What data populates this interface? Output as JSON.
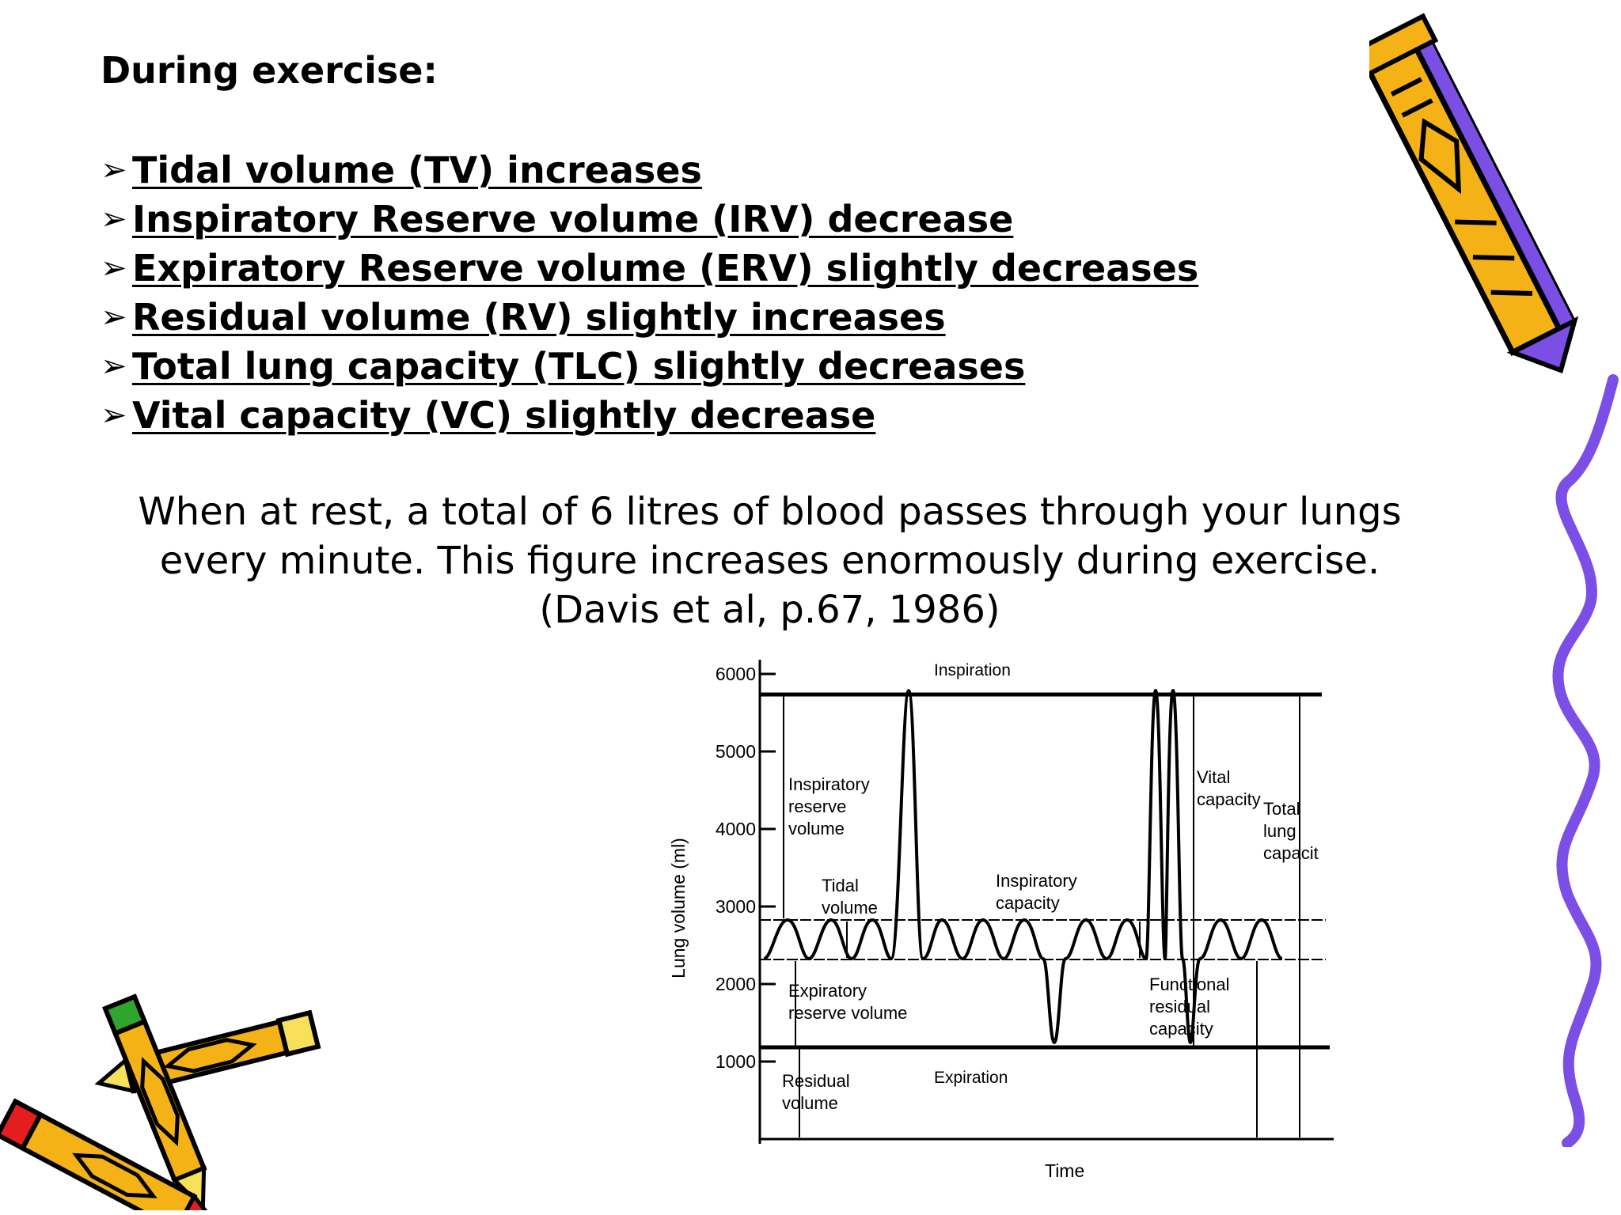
{
  "slide": {
    "heading": "During exercise:",
    "bullets": [
      {
        "arrow": "➢",
        "text": "Tidal volume (TV) increases"
      },
      {
        "arrow": "➢",
        "text": "Inspiratory Reserve volume (IRV) decrease"
      },
      {
        "arrow": "➢",
        "text": "Expiratory Reserve volume (ERV) slightly decreases"
      },
      {
        "arrow": "➢",
        "text": "Residual volume (RV) slightly increases"
      },
      {
        "arrow": "➢",
        "text": "Total lung capacity (TLC) slightly decreases"
      },
      {
        "arrow": "➢",
        "text": "Vital capacity (VC) slightly decrease"
      }
    ],
    "quote": {
      "line1": "When at rest, a total of 6 litres of blood passes through your lungs",
      "line2": "every minute.  This figure increases enormously during exercise.",
      "line3": "(Davis et al, p.67, 1986)"
    }
  },
  "diagram": {
    "y_axis_label": "Lung volume (ml)",
    "x_axis_label": "Time",
    "y_ticks": [
      "6000",
      "5000",
      "4000",
      "3000",
      "2000",
      "1000"
    ],
    "y_tick_values": [
      6000,
      5000,
      4000,
      3000,
      2000,
      1000
    ],
    "labels": {
      "inspiration": "Inspiration",
      "expiration": "Expiration",
      "irv_line1": "Inspiratory",
      "irv_line2": "reserve",
      "irv_line3": "volume",
      "tidal_line1": "Tidal",
      "tidal_line2": "volume",
      "erv_line1": "Expiratory",
      "erv_line2": "reserve volume",
      "rv_line1": "Residual",
      "rv_line2": "volume",
      "ic_line1": "Inspiratory",
      "ic_line2": "capacity",
      "vc_line1": "Vital",
      "vc_line2": "capacity",
      "tlc_line1": "Total",
      "tlc_line2": "lung",
      "tlc_line3": "capacit",
      "frc_line1": "Functional",
      "frc_line2": "residual",
      "frc_line3": "capacity"
    },
    "levels_ml": {
      "total_lung_capacity": 5800,
      "tidal_top": 2800,
      "tidal_bottom": 2300,
      "residual": 1200,
      "baseline": 0
    }
  },
  "decorations": {
    "pencil_colors": {
      "body": "#f5b216",
      "accent_purple": "#7b4fe6",
      "eraser_red": "#e41e1e",
      "eraser_green": "#2fa52f",
      "tip_yellow": "#f7e05a",
      "outline": "#000000"
    }
  }
}
